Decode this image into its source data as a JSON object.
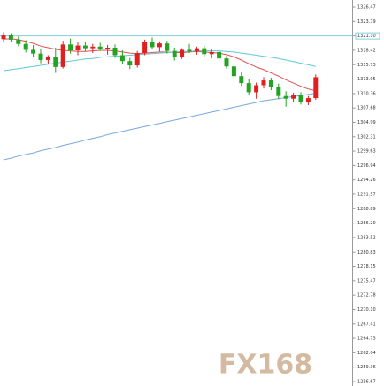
{
  "chart_data": {
    "type": "candlestick",
    "up_color": "#e02020",
    "down_color": "#22a322",
    "ylim": [
      1255.85,
      1327.79
    ],
    "yticks": [
      1326.47,
      1323.79,
      {
        "value": 1321.1,
        "label": "1321.10"
      },
      1318.42,
      1315.73,
      1313.05,
      1310.36,
      1307.68,
      1304.99,
      1302.31,
      1299.63,
      1296.94,
      1294.26,
      1291.57,
      1288.89,
      {
        "value": 1286.2,
        "label": "1286.20"
      },
      1283.52,
      1280.83,
      1278.15,
      1275.47,
      1272.78,
      {
        "value": 1270.1,
        "label": "1270.10"
      },
      1267.41,
      1264.73,
      1262.04,
      1259.36,
      1256.67
    ],
    "reference_line": 1321.1,
    "reference_color": "#7fd0e0",
    "watermark": "FX168",
    "candles": [
      [
        1320.5,
        1321.8,
        1319.9,
        1321.2
      ],
      [
        1321.2,
        1321.6,
        1320.0,
        1320.4
      ],
      [
        1320.4,
        1321.0,
        1319.2,
        1319.6
      ],
      [
        1319.6,
        1320.3,
        1318.0,
        1318.5
      ],
      [
        1318.5,
        1319.4,
        1317.2,
        1317.8
      ],
      [
        1317.8,
        1318.6,
        1316.0,
        1316.6
      ],
      [
        1316.6,
        1317.5,
        1315.8,
        1317.2
      ],
      [
        1317.2,
        1318.9,
        1314.2,
        1315.3
      ],
      [
        1315.3,
        1320.2,
        1315.0,
        1319.5
      ],
      [
        1319.5,
        1320.6,
        1317.8,
        1318.4
      ],
      [
        1318.4,
        1319.9,
        1317.5,
        1319.3
      ],
      [
        1319.3,
        1320.0,
        1318.2,
        1318.8
      ],
      [
        1318.8,
        1319.6,
        1317.9,
        1319.1
      ],
      [
        1319.1,
        1319.8,
        1318.3,
        1318.6
      ],
      [
        1318.6,
        1319.4,
        1317.6,
        1318.9
      ],
      [
        1318.9,
        1319.5,
        1317.0,
        1317.5
      ],
      [
        1317.5,
        1318.4,
        1315.9,
        1316.4
      ],
      [
        1316.4,
        1317.0,
        1314.9,
        1315.6
      ],
      [
        1315.6,
        1318.3,
        1315.2,
        1317.9
      ],
      [
        1317.9,
        1320.4,
        1317.5,
        1320.0
      ],
      [
        1320.0,
        1320.8,
        1318.6,
        1319.0
      ],
      [
        1319.0,
        1320.1,
        1318.2,
        1319.7
      ],
      [
        1319.7,
        1320.2,
        1317.8,
        1318.3
      ],
      [
        1318.3,
        1318.9,
        1316.5,
        1317.1
      ],
      [
        1317.1,
        1318.8,
        1316.8,
        1318.5
      ],
      [
        1318.5,
        1319.6,
        1317.9,
        1318.2
      ],
      [
        1318.2,
        1319.1,
        1317.6,
        1318.8
      ],
      [
        1318.8,
        1319.3,
        1317.2,
        1317.7
      ],
      [
        1317.7,
        1318.6,
        1316.9,
        1318.1
      ],
      [
        1318.1,
        1318.7,
        1316.5,
        1316.9
      ],
      [
        1316.9,
        1317.4,
        1315.0,
        1315.4
      ],
      [
        1315.4,
        1316.0,
        1313.2,
        1313.6
      ],
      [
        1313.6,
        1314.3,
        1311.8,
        1312.3
      ],
      [
        1312.3,
        1313.0,
        1310.0,
        1310.6
      ],
      [
        1310.6,
        1312.4,
        1309.4,
        1311.9
      ],
      [
        1311.9,
        1313.4,
        1311.3,
        1312.8
      ],
      [
        1312.8,
        1313.3,
        1311.0,
        1311.5
      ],
      [
        1311.5,
        1312.2,
        1309.3,
        1309.9
      ],
      [
        1309.9,
        1310.8,
        1307.9,
        1309.4
      ],
      [
        1309.4,
        1310.5,
        1308.7,
        1310.1
      ],
      [
        1310.1,
        1310.6,
        1308.3,
        1308.8
      ],
      [
        1308.8,
        1309.9,
        1308.2,
        1309.5
      ],
      [
        1309.5,
        1313.9,
        1309.2,
        1313.4
      ]
    ],
    "lines": [
      {
        "color": "#e05050",
        "values": [
          1320.5,
          1320.6,
          1320.4,
          1320.1,
          1319.7,
          1319.2,
          1318.9,
          1318.6,
          1318.4,
          1318.3,
          1318.2,
          1318.2,
          1318.3,
          1318.4,
          1318.4,
          1318.3,
          1318.1,
          1317.9,
          1317.8,
          1317.9,
          1318.0,
          1318.1,
          1318.1,
          1318.0,
          1318.0,
          1318.1,
          1318.2,
          1318.1,
          1318.0,
          1317.9,
          1317.6,
          1317.2,
          1316.6,
          1315.9,
          1315.3,
          1314.8,
          1314.2,
          1313.6,
          1312.9,
          1312.3,
          1311.7,
          1311.2,
          1310.9
        ]
      },
      {
        "color": "#60c8d8",
        "values": [
          1314.6,
          1314.8,
          1315.0,
          1315.2,
          1315.4,
          1315.6,
          1315.8,
          1316.0,
          1316.2,
          1316.4,
          1316.6,
          1316.8,
          1316.9,
          1317.1,
          1317.2,
          1317.3,
          1317.4,
          1317.5,
          1317.6,
          1317.7,
          1317.8,
          1317.9,
          1318.0,
          1318.1,
          1318.2,
          1318.2,
          1318.3,
          1318.3,
          1318.3,
          1318.3,
          1318.2,
          1318.1,
          1317.9,
          1317.7,
          1317.5,
          1317.3,
          1317.1,
          1316.9,
          1316.6,
          1316.3,
          1316.0,
          1315.7,
          1315.4
        ]
      },
      {
        "color": "#7aa8e0",
        "values": [
          1298.0,
          1298.3,
          1298.7,
          1299.0,
          1299.3,
          1299.7,
          1300.0,
          1300.3,
          1300.7,
          1301.0,
          1301.3,
          1301.7,
          1302.0,
          1302.3,
          1302.7,
          1303.0,
          1303.3,
          1303.6,
          1303.9,
          1304.2,
          1304.5,
          1304.8,
          1305.1,
          1305.4,
          1305.7,
          1306.0,
          1306.3,
          1306.6,
          1306.9,
          1307.2,
          1307.5,
          1307.8,
          1308.1,
          1308.4,
          1308.7,
          1309.0,
          1309.2,
          1309.4,
          1309.6,
          1309.8,
          1310.0,
          1310.2,
          1310.4
        ]
      }
    ]
  }
}
